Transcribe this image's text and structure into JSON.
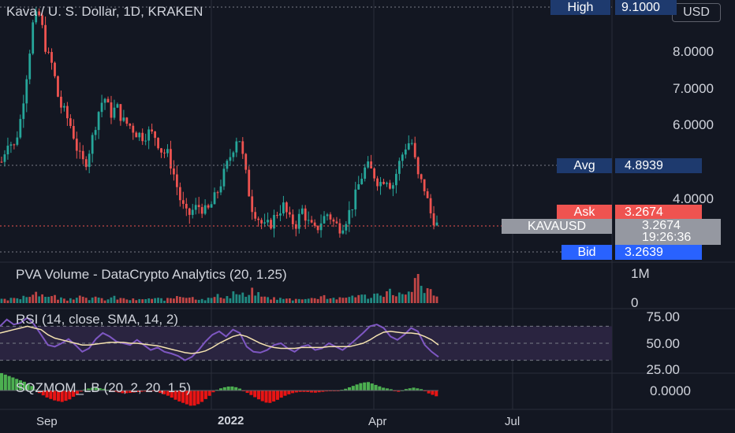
{
  "header": {
    "symbol_title": "Kava / U. S. Dollar, 1D, KRAKEN",
    "currency_button": "USD"
  },
  "price_tags": {
    "high_label": "High",
    "high_value": "9.1000",
    "avg_label": "Avg",
    "avg_value": "4.8939",
    "ask_label": "Ask",
    "ask_value": "3.2674",
    "symbol_label": "KAVAUSD",
    "last_value": "3.2674",
    "countdown": "19:26:36",
    "bid_label": "Bid",
    "bid_value": "3.2639"
  },
  "colors": {
    "background": "#131722",
    "up": "#26a69a",
    "down": "#ef5350",
    "rsi_line": "#7e57c2",
    "rsi_sma": "#f5e3b0",
    "rsi_band": "#2a2440",
    "tag_blue": "#1e3a6e",
    "tag_ask": "#ef5350",
    "tag_bid": "#2962ff",
    "tag_symbol": "#9598a1",
    "mom_green": "#4caf50",
    "mom_red": "#e81414"
  },
  "panes": {
    "volume_title": "PVA Volume - DataCrypto Analytics (20, 1.25)",
    "rsi_title": "RSI (14, close, SMA, 14, 2)",
    "mom_title": "SQZMOM_LB (20, 2, 20, 1.5)"
  },
  "price_axis": [
    "8.0000",
    "7.0000",
    "6.0000",
    "4.0000"
  ],
  "volume_axis": [
    "1M",
    "0"
  ],
  "rsi_axis": [
    "75.00",
    "50.00",
    "25.00"
  ],
  "mom_axis": [
    "0.0000"
  ],
  "time_axis": [
    "Sep",
    "2022",
    "Apr",
    "Jul"
  ],
  "chart_data": {
    "type": "candlestick",
    "title": "Kava / U. S. Dollar, 1D, KRAKEN",
    "price_range": [
      3.0,
      9.1
    ],
    "price_path": [
      [
        5.0,
        5.6,
        5.4,
        6.2,
        7.5,
        8.9,
        9.0,
        8.0,
        7.6,
        6.6,
        6.3,
        5.9,
        5.2,
        4.9,
        5.5,
        6.3,
        6.8,
        6.3,
        6.5,
        6.1,
        6.0,
        5.8,
        5.7,
        5.8,
        5.7,
        5.3,
        5.2,
        4.6,
        3.9,
        3.5,
        3.7,
        3.8,
        3.6,
        3.9,
        4.3,
        4.8,
        5.3,
        5.8,
        4.8,
        3.8,
        3.5,
        3.2,
        3.3,
        3.6,
        3.8,
        3.4,
        3.3,
        3.7,
        3.3,
        3.1,
        3.4,
        3.6,
        3.3,
        3.2,
        3.5,
        3.9,
        4.5,
        4.9,
        4.7,
        4.4,
        4.6,
        4.3,
        4.9,
        5.4,
        5.6,
        4.6,
        4.3,
        3.6,
        3.27
      ]
    ],
    "rsi": {
      "range": [
        20,
        85
      ],
      "levels": [
        70,
        50,
        30
      ],
      "series": [
        70,
        78,
        72,
        74,
        80,
        72,
        60,
        48,
        46,
        50,
        55,
        48,
        40,
        44,
        55,
        62,
        58,
        52,
        50,
        48,
        54,
        48,
        42,
        45,
        40,
        38,
        35,
        30,
        34,
        42,
        52,
        60,
        64,
        58,
        66,
        62,
        46,
        40,
        39,
        42,
        48,
        50,
        44,
        40,
        46,
        48,
        42,
        44,
        50,
        46,
        42,
        48,
        55,
        62,
        70,
        72,
        68,
        58,
        54,
        60,
        68,
        64,
        48,
        40,
        34
      ],
      "sma": [
        62,
        64,
        66,
        68,
        70,
        68,
        66,
        60,
        56,
        54,
        52,
        50,
        48,
        48,
        49,
        50,
        51,
        51,
        51,
        50,
        50,
        49,
        48,
        47,
        45,
        43,
        41,
        39,
        38,
        39,
        41,
        45,
        50,
        54,
        58,
        60,
        58,
        54,
        50,
        47,
        45,
        44,
        44,
        44,
        45,
        45,
        45,
        45,
        46,
        46,
        46,
        46,
        48,
        50,
        54,
        59,
        63,
        64,
        63,
        62,
        62,
        61,
        58,
        54,
        48
      ]
    },
    "volume": {
      "range": [
        0,
        1100000
      ],
      "values": [
        120000,
        150000,
        200000,
        260000,
        350000,
        420000,
        300000,
        240000,
        180000,
        150000,
        220000,
        260000,
        300000,
        180000,
        160000,
        140000,
        200000,
        170000,
        150000,
        130000,
        120000,
        170000,
        150000,
        160000,
        140000,
        190000,
        300000,
        240000,
        200000,
        180000,
        160000,
        210000,
        260000,
        240000,
        380000,
        300000,
        260000,
        420000,
        300000,
        200000,
        180000,
        160000,
        150000,
        140000,
        200000,
        160000,
        220000,
        280000,
        200000,
        180000,
        160000,
        220000,
        300000,
        260000,
        240000,
        320000,
        380000,
        420000,
        360000,
        280000,
        340000,
        900000,
        560000,
        420000,
        260000
      ]
    },
    "momentum": {
      "values": [
        0.6,
        0.5,
        0.4,
        0.3,
        0.15,
        -0.1,
        -0.25,
        -0.35,
        -0.4,
        -0.3,
        -0.1,
        0.05,
        0.1,
        0.08,
        0.02,
        -0.05,
        -0.1,
        -0.08,
        -0.05,
        -0.03,
        -0.02,
        -0.1,
        -0.2,
        -0.35,
        -0.45,
        -0.55,
        -0.45,
        -0.25,
        0.0,
        0.1,
        0.15,
        0.1,
        -0.05,
        -0.2,
        -0.35,
        -0.45,
        -0.35,
        -0.2,
        -0.1,
        -0.05,
        -0.05,
        -0.08,
        -0.05,
        -0.02,
        -0.01,
        0.05,
        0.15,
        0.25,
        0.3,
        0.2,
        0.1,
        0.05,
        -0.05,
        0.05,
        0.1,
        0.05,
        -0.1,
        -0.2
      ],
      "range": [
        -0.8,
        0.8
      ]
    }
  }
}
